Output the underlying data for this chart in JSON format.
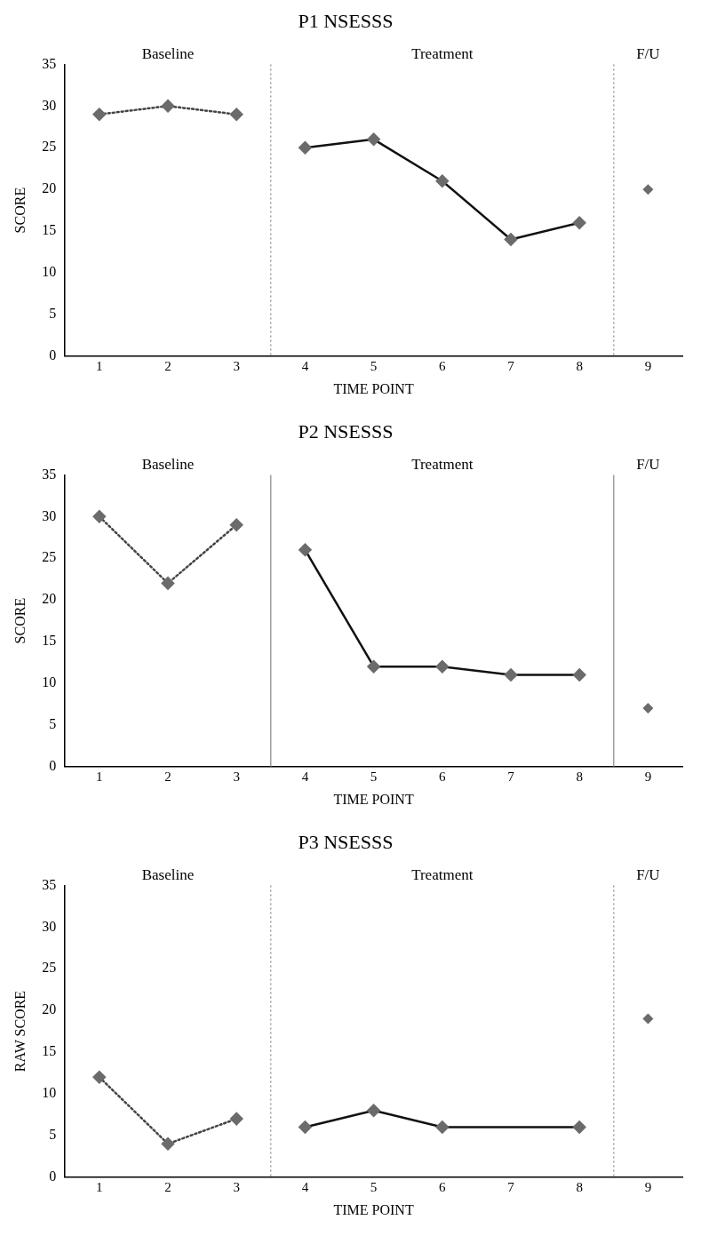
{
  "chart_data": [
    {
      "type": "line",
      "title": "P1 NSESSS",
      "xlabel": "TIME POINT",
      "ylabel": "SCORE",
      "xlim": [
        0.5,
        9.5
      ],
      "xticks": [
        1,
        2,
        3,
        4,
        5,
        6,
        7,
        8,
        9
      ],
      "ylim": [
        0,
        35
      ],
      "yticks": [
        0,
        5,
        10,
        15,
        20,
        25,
        30,
        35
      ],
      "grid": false,
      "legend": false,
      "marker": "diamond",
      "annotations": [
        "Baseline",
        "Treatment",
        "F/U"
      ],
      "ref_lines": [
        {
          "axis": "x",
          "value": 3.5,
          "color": "#888888",
          "line_style": "dotted"
        },
        {
          "axis": "x",
          "value": 8.5,
          "color": "#888888",
          "line_style": "dotted"
        }
      ],
      "series": [
        {
          "line_style": "dotted",
          "color": "#444444",
          "x": [
            1,
            2,
            3
          ],
          "values": [
            29,
            30,
            29
          ]
        },
        {
          "line_style": "solid",
          "color": "#111111",
          "x": [
            4,
            5,
            6,
            7,
            8
          ],
          "values": [
            25,
            26,
            21,
            14,
            16
          ]
        },
        {
          "type": "scatter",
          "color": "#6b6b6b",
          "x": [
            9
          ],
          "values": [
            20
          ]
        }
      ]
    },
    {
      "type": "line",
      "title": "P2 NSESSS",
      "xlabel": "TIME POINT",
      "ylabel": "SCORE",
      "xlim": [
        0.5,
        9.5
      ],
      "xticks": [
        1,
        2,
        3,
        4,
        5,
        6,
        7,
        8,
        9
      ],
      "ylim": [
        0,
        35
      ],
      "yticks": [
        0,
        5,
        10,
        15,
        20,
        25,
        30,
        35
      ],
      "grid": false,
      "legend": false,
      "marker": "diamond",
      "annotations": [
        "Baseline",
        "Treatment",
        "F/U"
      ],
      "ref_lines": [
        {
          "axis": "x",
          "value": 3.5,
          "color": "#888888",
          "line_style": "solid"
        },
        {
          "axis": "x",
          "value": 8.5,
          "color": "#888888",
          "line_style": "solid"
        }
      ],
      "series": [
        {
          "line_style": "dotted",
          "color": "#444444",
          "x": [
            1,
            2,
            3
          ],
          "values": [
            30,
            22,
            29
          ]
        },
        {
          "line_style": "solid",
          "color": "#111111",
          "x": [
            4,
            5,
            6,
            7,
            8
          ],
          "values": [
            26,
            12,
            12,
            11,
            11
          ]
        },
        {
          "type": "scatter",
          "color": "#6b6b6b",
          "x": [
            9
          ],
          "values": [
            7
          ]
        }
      ]
    },
    {
      "type": "line",
      "title": "P3 NSESSS",
      "xlabel": "TIME POINT",
      "ylabel": "RAW SCORE",
      "xlim": [
        0.5,
        9.5
      ],
      "xticks": [
        1,
        2,
        3,
        4,
        5,
        6,
        7,
        8,
        9
      ],
      "ylim": [
        0,
        35
      ],
      "yticks": [
        0,
        5,
        10,
        15,
        20,
        25,
        30,
        35
      ],
      "grid": false,
      "legend": false,
      "marker": "diamond",
      "annotations": [
        "Baseline",
        "Treatment",
        "F/U"
      ],
      "ref_lines": [
        {
          "axis": "x",
          "value": 3.5,
          "color": "#888888",
          "line_style": "dotted"
        },
        {
          "axis": "x",
          "value": 8.5,
          "color": "#888888",
          "line_style": "dotted"
        }
      ],
      "series": [
        {
          "line_style": "dotted",
          "color": "#444444",
          "x": [
            1,
            2,
            3
          ],
          "values": [
            12,
            4,
            7
          ]
        },
        {
          "line_style": "solid",
          "color": "#111111",
          "x": [
            4,
            5,
            6,
            8
          ],
          "values": [
            6,
            8,
            6,
            6
          ]
        },
        {
          "type": "scatter",
          "color": "#6b6b6b",
          "x": [
            9
          ],
          "values": [
            19
          ]
        }
      ]
    }
  ]
}
